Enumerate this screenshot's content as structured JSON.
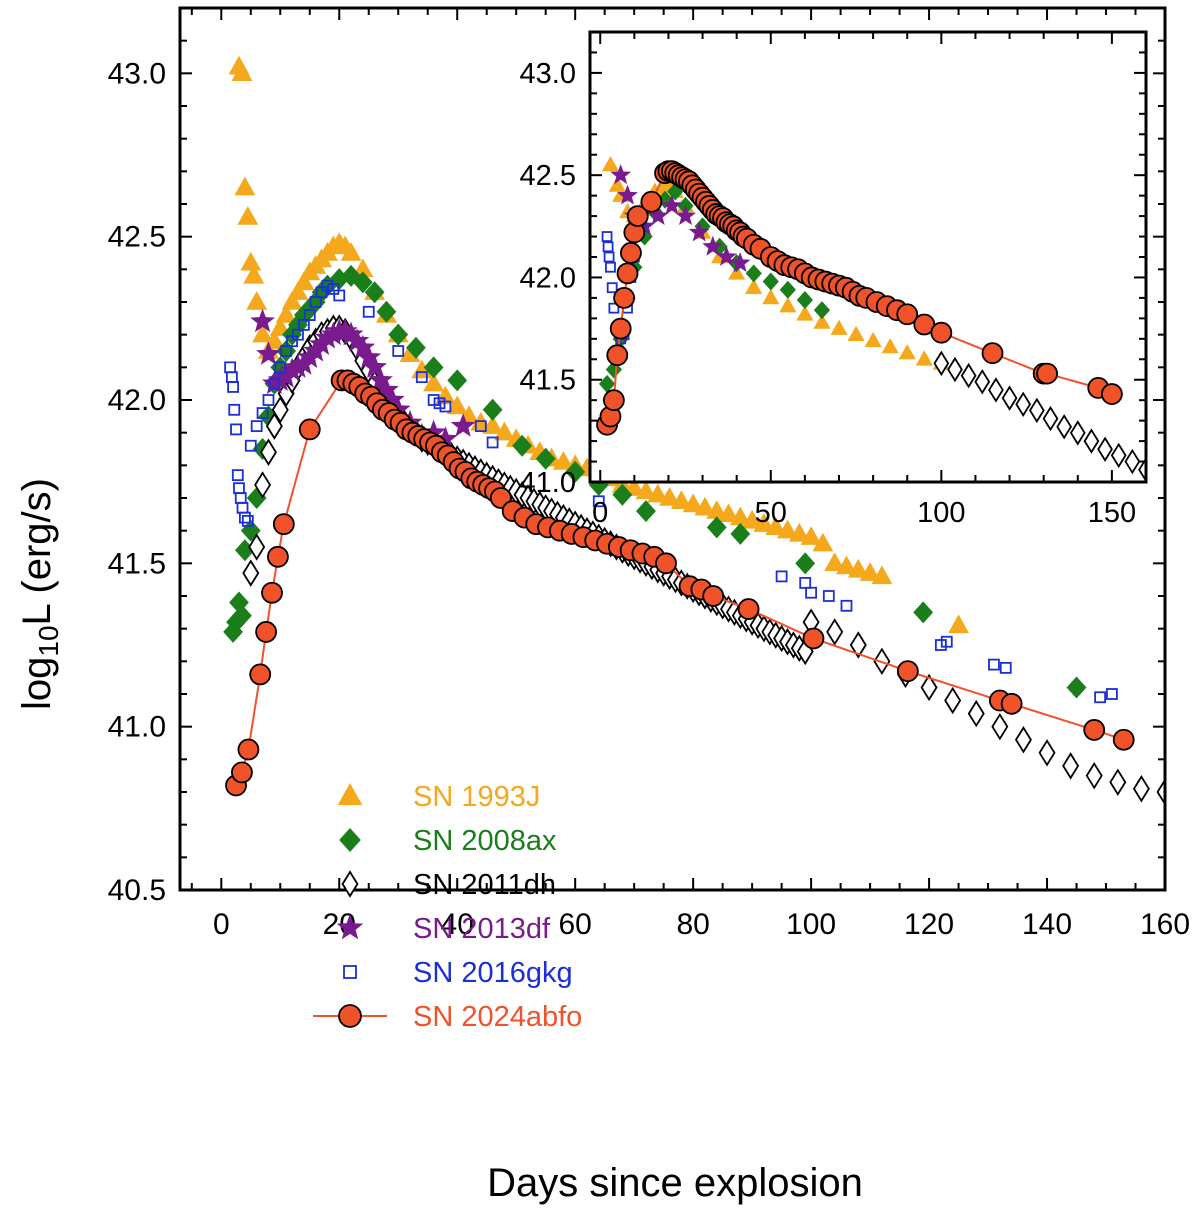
{
  "chart_data": {
    "type": "scatter",
    "xlabel": "Days since explosion",
    "ylabel_prefix": "log",
    "ylabel_sub": "10",
    "ylabel_suffix": "L (erg/s)",
    "xlim": [
      -7,
      160
    ],
    "ylim": [
      40.5,
      43.2
    ],
    "xticks": [
      0,
      20,
      40,
      60,
      80,
      100,
      120,
      140,
      160
    ],
    "yticks": [
      40.5,
      41.0,
      41.5,
      42.0,
      42.5,
      43.0
    ],
    "xtick_labels": [
      "0",
      "20",
      "40",
      "60",
      "80",
      "100",
      "120",
      "140",
      "160"
    ],
    "ytick_labels": [
      "40.5",
      "41.0",
      "41.5",
      "42.0",
      "42.5",
      "43.0"
    ],
    "legend_position": "lower-left",
    "series": [
      {
        "name": "SN 1993J",
        "label": "SN 1993J",
        "color": "#F5A81C",
        "marker": "triangle-filled",
        "x": [
          3,
          3.5,
          4,
          4.5,
          5,
          5.5,
          6,
          7,
          8,
          9,
          10,
          11,
          12,
          13,
          14,
          15,
          16,
          17,
          18,
          19,
          20,
          21,
          22,
          24,
          26,
          28,
          30,
          32,
          34,
          36,
          38,
          40,
          42,
          44,
          46,
          48,
          50,
          52,
          54,
          56,
          58,
          60,
          62,
          64,
          66,
          68,
          70,
          72,
          74,
          76,
          78,
          80,
          82,
          84,
          86,
          88,
          90,
          92,
          94,
          96,
          98,
          100,
          102,
          104,
          106,
          108,
          110,
          112,
          125
        ],
        "y": [
          43.02,
          43.0,
          42.65,
          42.56,
          42.42,
          42.38,
          42.3,
          42.2,
          42.15,
          42.18,
          42.22,
          42.26,
          42.3,
          42.33,
          42.36,
          42.39,
          42.41,
          42.43,
          42.45,
          42.47,
          42.48,
          42.47,
          42.45,
          42.4,
          42.33,
          42.26,
          42.2,
          42.14,
          42.09,
          42.05,
          42.01,
          41.98,
          41.95,
          41.93,
          41.92,
          41.9,
          41.88,
          41.86,
          41.84,
          41.82,
          41.81,
          41.8,
          41.79,
          41.78,
          41.76,
          41.74,
          41.73,
          41.72,
          41.71,
          41.7,
          41.69,
          41.68,
          41.67,
          41.66,
          41.65,
          41.64,
          41.63,
          41.62,
          41.61,
          41.6,
          41.59,
          41.58,
          41.56,
          41.5,
          41.49,
          41.48,
          41.47,
          41.46,
          41.31
        ],
        "inset_x": [
          3,
          5,
          6,
          8,
          10,
          12,
          14,
          16,
          18,
          20,
          22,
          25,
          30,
          35,
          40,
          45,
          50,
          55,
          60,
          65,
          70,
          75,
          80,
          85,
          90,
          95,
          100
        ],
        "inset_y": [
          42.55,
          42.45,
          42.4,
          42.32,
          42.3,
          42.33,
          42.38,
          42.42,
          42.44,
          42.45,
          42.42,
          42.35,
          42.22,
          42.1,
          42.02,
          41.95,
          41.9,
          41.86,
          41.82,
          41.78,
          41.75,
          41.72,
          41.69,
          41.66,
          41.63,
          41.6,
          41.58
        ]
      },
      {
        "name": "SN 2008ax",
        "label": "SN 2008ax",
        "color": "#1A7F1A",
        "marker": "diamond-filled",
        "x": [
          2,
          2.5,
          3,
          3.5,
          4,
          5,
          6,
          7,
          8,
          9,
          10,
          11,
          12,
          13,
          14,
          15,
          16,
          17,
          18,
          20,
          22,
          24,
          26,
          28,
          30,
          33,
          36,
          40,
          46,
          51,
          55,
          60,
          64,
          68,
          72,
          84,
          88,
          99,
          119,
          145
        ],
        "y": [
          41.29,
          41.32,
          41.38,
          41.34,
          41.54,
          41.6,
          41.7,
          41.85,
          41.95,
          42.05,
          42.1,
          42.15,
          42.2,
          42.23,
          42.26,
          42.28,
          42.3,
          42.33,
          42.35,
          42.37,
          42.38,
          42.36,
          42.33,
          42.27,
          42.2,
          42.16,
          42.1,
          42.06,
          41.97,
          41.86,
          41.82,
          41.78,
          41.74,
          41.71,
          41.66,
          41.61,
          41.59,
          41.5,
          41.35,
          41.12
        ],
        "inset_x": [
          2,
          3,
          4,
          6,
          8,
          10,
          13,
          16,
          19,
          22,
          25,
          30,
          35,
          40,
          45,
          50,
          55,
          60,
          65
        ],
        "inset_y": [
          41.48,
          41.4,
          41.55,
          41.7,
          41.9,
          42.05,
          42.2,
          42.32,
          42.38,
          42.42,
          42.35,
          42.25,
          42.15,
          42.07,
          42.02,
          41.98,
          41.94,
          41.89,
          41.84
        ]
      },
      {
        "name": "SN 2011dh",
        "label": "SN 2011dh",
        "color": "#000000",
        "marker": "diamond-open",
        "x": [
          5,
          6,
          7,
          8,
          9,
          10,
          11,
          12,
          13,
          14,
          15,
          16,
          17,
          18,
          19,
          20,
          21,
          22,
          23,
          24,
          25,
          26,
          27,
          28,
          29,
          30,
          31,
          32,
          33,
          34,
          35,
          36,
          37,
          38,
          39,
          40,
          41,
          42,
          43,
          44,
          45,
          46,
          47,
          48,
          49,
          50,
          51,
          52,
          53,
          54,
          55,
          56,
          57,
          58,
          59,
          60,
          61,
          62,
          63,
          64,
          65,
          66,
          67,
          68,
          69,
          70,
          71,
          72,
          73,
          74,
          75,
          76,
          77,
          78,
          79,
          80,
          81,
          82,
          83,
          84,
          85,
          86,
          87,
          88,
          89,
          90,
          91,
          92,
          93,
          94,
          95,
          96,
          97,
          98,
          99,
          100,
          104,
          108,
          112,
          116,
          120,
          124,
          128,
          132,
          136,
          140,
          144,
          148,
          152,
          156,
          160
        ],
        "y": [
          41.47,
          41.55,
          41.74,
          41.84,
          41.92,
          41.97,
          42.02,
          42.06,
          42.1,
          42.13,
          42.16,
          42.18,
          42.2,
          42.21,
          42.22,
          42.22,
          42.21,
          42.19,
          42.16,
          42.12,
          42.09,
          42.05,
          42.02,
          41.99,
          41.97,
          41.95,
          41.93,
          41.91,
          41.9,
          41.88,
          41.87,
          41.86,
          41.85,
          41.84,
          41.83,
          41.82,
          41.81,
          41.8,
          41.79,
          41.78,
          41.77,
          41.76,
          41.75,
          41.74,
          41.73,
          41.72,
          41.71,
          41.7,
          41.69,
          41.68,
          41.67,
          41.66,
          41.65,
          41.64,
          41.63,
          41.62,
          41.61,
          41.6,
          41.59,
          41.58,
          41.57,
          41.56,
          41.55,
          41.54,
          41.53,
          41.52,
          41.51,
          41.5,
          41.49,
          41.48,
          41.47,
          41.46,
          41.45,
          41.44,
          41.43,
          41.42,
          41.41,
          41.4,
          41.39,
          41.38,
          41.37,
          41.36,
          41.35,
          41.34,
          41.33,
          41.32,
          41.31,
          41.3,
          41.29,
          41.28,
          41.27,
          41.26,
          41.25,
          41.24,
          41.23,
          41.32,
          41.29,
          41.25,
          41.2,
          41.16,
          41.12,
          41.08,
          41.04,
          41.0,
          40.96,
          40.92,
          40.88,
          40.85,
          40.83,
          40.81,
          40.8
        ],
        "inset_x": [
          100,
          104,
          108,
          112,
          116,
          120,
          124,
          128,
          132,
          136,
          140,
          144,
          148,
          152,
          156,
          160
        ],
        "inset_y": [
          41.58,
          41.55,
          41.52,
          41.49,
          41.45,
          41.41,
          41.38,
          41.35,
          41.31,
          41.27,
          41.24,
          41.2,
          41.16,
          41.13,
          41.1,
          41.06
        ]
      },
      {
        "name": "SN 2013df",
        "label": "SN 2013df",
        "color": "#7A1A8F",
        "marker": "star-filled",
        "x": [
          7,
          8,
          9,
          10,
          11,
          12,
          13,
          14,
          15,
          16,
          17,
          18,
          19,
          20,
          21,
          22,
          23,
          24,
          25,
          26,
          27,
          28,
          29,
          30,
          32,
          34,
          36,
          38,
          41
        ],
        "y": [
          42.24,
          42.14,
          42.05,
          42.06,
          42.07,
          42.09,
          42.1,
          42.11,
          42.13,
          42.15,
          42.17,
          42.19,
          42.2,
          42.21,
          42.21,
          42.2,
          42.18,
          42.16,
          42.13,
          42.1,
          42.06,
          42.03,
          42.0,
          41.97,
          41.93,
          41.89,
          41.9,
          41.88,
          41.92
        ],
        "inset_x": [
          6,
          8,
          10,
          13,
          17,
          21,
          25,
          29,
          33,
          37,
          41
        ],
        "inset_y": [
          42.5,
          42.4,
          42.3,
          42.25,
          42.3,
          42.35,
          42.3,
          42.22,
          42.15,
          42.1,
          42.07
        ]
      },
      {
        "name": "SN 2016gkg",
        "label": "SN 2016gkg",
        "color": "#1A2FD9",
        "marker": "square-open",
        "x": [
          1.5,
          1.8,
          2.0,
          2.2,
          2.5,
          2.8,
          3.0,
          3.3,
          3.6,
          4.0,
          4.5,
          5,
          6,
          7,
          8,
          9,
          10,
          11,
          12,
          13,
          14,
          15,
          16,
          17,
          18,
          19,
          20,
          25,
          30,
          34,
          36,
          37,
          38,
          44,
          46,
          64,
          95,
          99,
          100,
          103,
          106,
          122,
          123,
          131,
          133,
          149,
          151
        ],
        "y": [
          42.1,
          42.07,
          42.04,
          41.97,
          41.91,
          41.77,
          41.73,
          41.7,
          41.67,
          41.64,
          41.63,
          41.86,
          41.92,
          41.96,
          42.0,
          42.05,
          42.1,
          42.15,
          42.18,
          42.2,
          42.23,
          42.26,
          42.3,
          42.33,
          42.35,
          42.34,
          42.32,
          42.27,
          42.15,
          42.07,
          42.0,
          41.99,
          41.98,
          41.92,
          41.87,
          41.69,
          41.46,
          41.44,
          41.41,
          41.4,
          41.37,
          41.25,
          41.26,
          41.19,
          41.18,
          41.09,
          41.1
        ],
        "inset_x": [
          2,
          2.3,
          2.6,
          3,
          3.5,
          4,
          5,
          6,
          7,
          8,
          9,
          10,
          12,
          14
        ],
        "inset_y": [
          42.2,
          42.15,
          42.1,
          42.05,
          41.95,
          41.85,
          41.75,
          41.7,
          41.72,
          41.85,
          42.0,
          42.1,
          42.25,
          42.35
        ]
      },
      {
        "name": "SN 2024abfo",
        "label": "SN 2024abfo",
        "color": "#F0522A",
        "marker": "circle-filled",
        "x": [
          2.5,
          3.5,
          4.6,
          6.6,
          7.6,
          8.6,
          9.6,
          10.6,
          15,
          20.4,
          21.4,
          22.4,
          23.4,
          24.4,
          25.4,
          26.4,
          27.4,
          28.4,
          29.4,
          30.4,
          31.4,
          32.4,
          33.4,
          34.4,
          35.4,
          36.4,
          37.4,
          38.4,
          39.4,
          40.4,
          41.4,
          42.4,
          43.4,
          44.4,
          45.4,
          46.4,
          47.4,
          49.4,
          51.4,
          53.4,
          55.4,
          57.4,
          59.4,
          61.4,
          63.4,
          65.4,
          67.4,
          69.4,
          71.4,
          73.4,
          75.4,
          79.4,
          81.4,
          83.4,
          89.4,
          100.4,
          116.4,
          132,
          134,
          148,
          153
        ],
        "y": [
          40.82,
          40.86,
          40.93,
          41.16,
          41.29,
          41.41,
          41.52,
          41.62,
          41.91,
          42.06,
          42.06,
          42.05,
          42.04,
          42.02,
          42.01,
          41.99,
          41.97,
          41.96,
          41.94,
          41.93,
          41.91,
          41.9,
          41.89,
          41.88,
          41.87,
          41.86,
          41.84,
          41.83,
          41.81,
          41.79,
          41.78,
          41.76,
          41.75,
          41.74,
          41.73,
          41.72,
          41.7,
          41.66,
          41.64,
          41.62,
          41.61,
          41.6,
          41.59,
          41.58,
          41.57,
          41.56,
          41.55,
          41.54,
          41.53,
          41.52,
          41.5,
          41.43,
          41.42,
          41.4,
          41.36,
          41.27,
          41.17,
          41.08,
          41.07,
          40.99,
          40.96
        ],
        "inset_x": [
          2,
          3,
          4,
          5,
          6,
          7,
          8,
          9,
          10,
          11,
          15,
          19,
          20,
          21,
          22,
          23,
          24,
          25,
          26,
          27,
          28,
          29,
          30,
          31,
          32,
          33,
          34,
          35,
          36,
          37,
          38,
          39,
          40,
          41,
          42,
          43,
          45,
          47,
          50,
          52,
          54,
          56,
          58,
          60,
          62,
          64,
          66,
          68,
          70,
          72,
          74,
          76,
          78,
          81,
          84,
          87,
          90,
          95,
          100,
          115,
          130,
          131,
          146,
          150
        ],
        "inset_y": [
          41.28,
          41.32,
          41.4,
          41.62,
          41.75,
          41.9,
          42.02,
          42.12,
          42.22,
          42.3,
          42.37,
          42.51,
          42.52,
          42.52,
          42.51,
          42.5,
          42.49,
          42.48,
          42.47,
          42.45,
          42.43,
          42.41,
          42.39,
          42.37,
          42.35,
          42.33,
          42.31,
          42.3,
          42.29,
          42.27,
          42.26,
          42.25,
          42.23,
          42.22,
          42.2,
          42.19,
          42.16,
          42.14,
          42.1,
          42.08,
          42.06,
          42.05,
          42.04,
          42.02,
          42.0,
          41.99,
          41.98,
          41.97,
          41.96,
          41.95,
          41.93,
          41.91,
          41.9,
          41.88,
          41.86,
          41.84,
          41.82,
          41.77,
          41.73,
          41.63,
          41.53,
          41.53,
          41.46,
          41.43
        ]
      }
    ],
    "inset": {
      "xlim": [
        -3,
        160
      ],
      "ylim": [
        41.0,
        43.2
      ],
      "xticks": [
        0,
        50,
        100,
        150
      ],
      "yticks": [
        41.0,
        41.5,
        42.0,
        42.5,
        43.0
      ],
      "xtick_labels": [
        "0",
        "50",
        "100",
        "150"
      ],
      "ytick_labels": [
        "41.0",
        "41.5",
        "42.0",
        "42.5",
        "43.0"
      ]
    }
  }
}
